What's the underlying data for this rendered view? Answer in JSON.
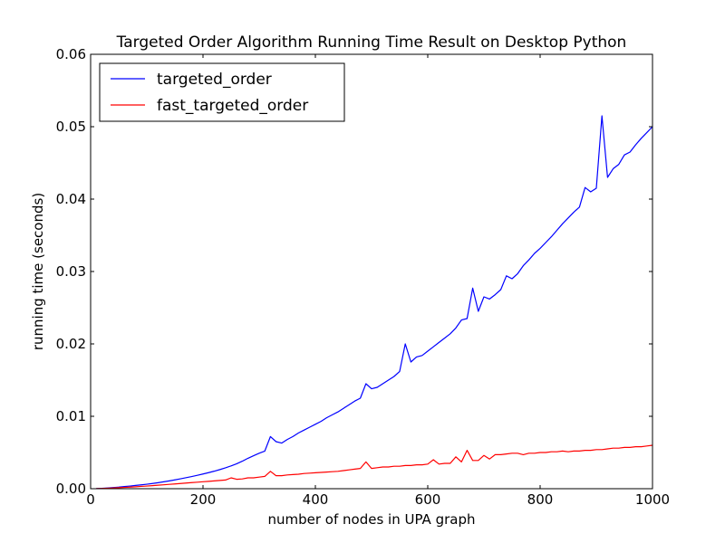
{
  "chart_data": {
    "type": "line",
    "title": "Targeted Order Algorithm Running Time Result on Desktop Python",
    "xlabel": "number of nodes in UPA graph",
    "ylabel": "running time (seconds)",
    "xlim": [
      0,
      1000
    ],
    "ylim": [
      0,
      0.06
    ],
    "x_ticks": [
      0,
      200,
      400,
      600,
      800,
      1000
    ],
    "x_tick_labels": [
      "0",
      "200",
      "400",
      "600",
      "800",
      "1000"
    ],
    "y_ticks": [
      0,
      0.01,
      0.02,
      0.03,
      0.04,
      0.05,
      0.06
    ],
    "y_tick_labels": [
      "0.00",
      "0.01",
      "0.02",
      "0.03",
      "0.04",
      "0.05",
      "0.06"
    ],
    "grid": false,
    "legend_position": "top-left",
    "x": [
      10,
      20,
      30,
      40,
      50,
      60,
      70,
      80,
      90,
      100,
      110,
      120,
      130,
      140,
      150,
      160,
      170,
      180,
      190,
      200,
      210,
      220,
      230,
      240,
      250,
      260,
      270,
      280,
      290,
      300,
      310,
      320,
      330,
      340,
      350,
      360,
      370,
      380,
      390,
      400,
      410,
      420,
      430,
      440,
      450,
      460,
      470,
      480,
      490,
      500,
      510,
      520,
      530,
      540,
      550,
      560,
      570,
      580,
      590,
      600,
      610,
      620,
      630,
      640,
      650,
      660,
      670,
      680,
      690,
      700,
      710,
      720,
      730,
      740,
      750,
      760,
      770,
      780,
      790,
      800,
      810,
      820,
      830,
      840,
      850,
      860,
      870,
      880,
      890,
      900,
      910,
      920,
      930,
      940,
      950,
      960,
      970,
      980,
      990,
      1000
    ],
    "series": [
      {
        "name": "targeted_order",
        "color": "#0000ff",
        "values": [
          2e-05,
          5e-05,
          0.0001,
          0.00016,
          0.00022,
          0.0003,
          0.00037,
          0.00045,
          0.00053,
          0.00062,
          0.00072,
          0.00083,
          0.00095,
          0.00108,
          0.00122,
          0.00137,
          0.00152,
          0.00168,
          0.00185,
          0.00203,
          0.00222,
          0.00242,
          0.00264,
          0.00288,
          0.00315,
          0.00345,
          0.0038,
          0.0042,
          0.00455,
          0.0049,
          0.0052,
          0.0072,
          0.0065,
          0.0063,
          0.0068,
          0.0072,
          0.0077,
          0.0081,
          0.0085,
          0.0089,
          0.0093,
          0.0098,
          0.0102,
          0.0106,
          0.0111,
          0.0116,
          0.0121,
          0.0125,
          0.0145,
          0.0138,
          0.014,
          0.0145,
          0.015,
          0.0155,
          0.0162,
          0.02,
          0.0175,
          0.0182,
          0.0184,
          0.019,
          0.0196,
          0.0202,
          0.0208,
          0.0214,
          0.0222,
          0.0233,
          0.0235,
          0.0277,
          0.0245,
          0.0265,
          0.0262,
          0.0268,
          0.0275,
          0.0294,
          0.029,
          0.0297,
          0.0308,
          0.0316,
          0.0325,
          0.0332,
          0.034,
          0.0348,
          0.0357,
          0.0366,
          0.0374,
          0.0382,
          0.0389,
          0.0416,
          0.041,
          0.0415,
          0.0515,
          0.043,
          0.0442,
          0.0448,
          0.0461,
          0.0465,
          0.0475,
          0.0484,
          0.0492,
          0.05
        ]
      },
      {
        "name": "fast_targeted_order",
        "color": "#ff0000",
        "values": [
          2e-05,
          4e-05,
          7e-05,
          0.0001,
          0.00014,
          0.00018,
          0.00022,
          0.00027,
          0.00032,
          0.00037,
          0.00042,
          0.00048,
          0.00054,
          0.0006,
          0.00066,
          0.00072,
          0.00078,
          0.00084,
          0.0009,
          0.00096,
          0.00102,
          0.00108,
          0.00114,
          0.0012,
          0.0015,
          0.0013,
          0.00135,
          0.0015,
          0.0015,
          0.0016,
          0.0017,
          0.0024,
          0.0018,
          0.0018,
          0.0019,
          0.00195,
          0.002,
          0.0021,
          0.00215,
          0.0022,
          0.00225,
          0.0023,
          0.00235,
          0.0024,
          0.0025,
          0.0026,
          0.0027,
          0.0028,
          0.0037,
          0.0028,
          0.0029,
          0.003,
          0.003,
          0.0031,
          0.0031,
          0.0032,
          0.0032,
          0.0033,
          0.0033,
          0.0034,
          0.004,
          0.0034,
          0.0035,
          0.0035,
          0.0044,
          0.0037,
          0.0053,
          0.0039,
          0.0039,
          0.0046,
          0.0041,
          0.0047,
          0.0047,
          0.0048,
          0.0049,
          0.0049,
          0.0047,
          0.0049,
          0.0049,
          0.005,
          0.005,
          0.0051,
          0.0051,
          0.0052,
          0.0051,
          0.0052,
          0.0052,
          0.0053,
          0.0053,
          0.0054,
          0.0054,
          0.0055,
          0.0056,
          0.0056,
          0.0057,
          0.0057,
          0.0058,
          0.0058,
          0.0059,
          0.006
        ]
      }
    ]
  }
}
